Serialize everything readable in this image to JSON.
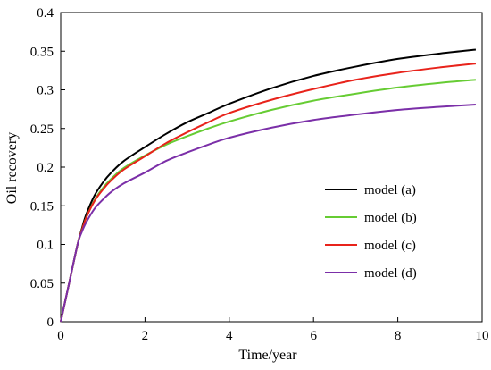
{
  "chart_data": {
    "type": "line",
    "xlabel": "Time/year",
    "ylabel": "Oil recovery",
    "xlim": [
      0,
      10
    ],
    "ylim": [
      0,
      0.4
    ],
    "xticks": [
      0,
      2,
      4,
      6,
      8,
      10
    ],
    "yticks": [
      0,
      0.05,
      0.1,
      0.15,
      0.2,
      0.25,
      0.3,
      0.35,
      0.4
    ],
    "xtick_labels": [
      "0",
      "2",
      "4",
      "6",
      "8",
      "10"
    ],
    "ytick_labels": [
      "0",
      "0.05",
      "0.1",
      "0.15",
      "0.2",
      "0.25",
      "0.3",
      "0.35",
      "0.4"
    ],
    "grid": false,
    "legend_position": "right",
    "series": [
      {
        "name": "model (a)",
        "color": "#000000",
        "x": [
          0,
          0.2,
          0.4,
          0.5,
          0.6,
          0.8,
          1.0,
          1.2,
          1.5,
          2,
          2.5,
          3,
          3.5,
          4,
          5,
          6,
          7,
          8,
          9,
          9.85
        ],
        "y": [
          0,
          0.05,
          0.1,
          0.12,
          0.138,
          0.163,
          0.18,
          0.193,
          0.208,
          0.226,
          0.243,
          0.258,
          0.27,
          0.282,
          0.302,
          0.318,
          0.33,
          0.34,
          0.347,
          0.352
        ]
      },
      {
        "name": "model (b)",
        "color": "#66cc33",
        "x": [
          0,
          0.2,
          0.4,
          0.5,
          0.6,
          0.8,
          1.0,
          1.2,
          1.5,
          2,
          2.5,
          3,
          3.5,
          4,
          5,
          6,
          7,
          8,
          9,
          9.85
        ],
        "y": [
          0,
          0.05,
          0.1,
          0.118,
          0.134,
          0.157,
          0.173,
          0.185,
          0.199,
          0.215,
          0.229,
          0.24,
          0.25,
          0.259,
          0.274,
          0.286,
          0.295,
          0.303,
          0.309,
          0.313
        ]
      },
      {
        "name": "model (c)",
        "color": "#e8231b",
        "x": [
          0,
          0.2,
          0.4,
          0.5,
          0.6,
          0.8,
          1.0,
          1.2,
          1.5,
          2,
          2.5,
          3,
          3.5,
          4,
          5,
          6,
          7,
          8,
          9,
          9.85
        ],
        "y": [
          0,
          0.05,
          0.1,
          0.118,
          0.134,
          0.156,
          0.171,
          0.183,
          0.197,
          0.214,
          0.231,
          0.245,
          0.258,
          0.27,
          0.287,
          0.301,
          0.313,
          0.322,
          0.329,
          0.334
        ]
      },
      {
        "name": "model (d)",
        "color": "#7b2fa8",
        "x": [
          0,
          0.2,
          0.4,
          0.5,
          0.6,
          0.8,
          1.0,
          1.2,
          1.5,
          2,
          2.5,
          3,
          3.5,
          4,
          5,
          6,
          7,
          8,
          9,
          9.85
        ],
        "y": [
          0,
          0.05,
          0.1,
          0.116,
          0.128,
          0.146,
          0.158,
          0.168,
          0.179,
          0.193,
          0.208,
          0.219,
          0.229,
          0.238,
          0.251,
          0.261,
          0.268,
          0.274,
          0.278,
          0.281
        ]
      }
    ]
  }
}
